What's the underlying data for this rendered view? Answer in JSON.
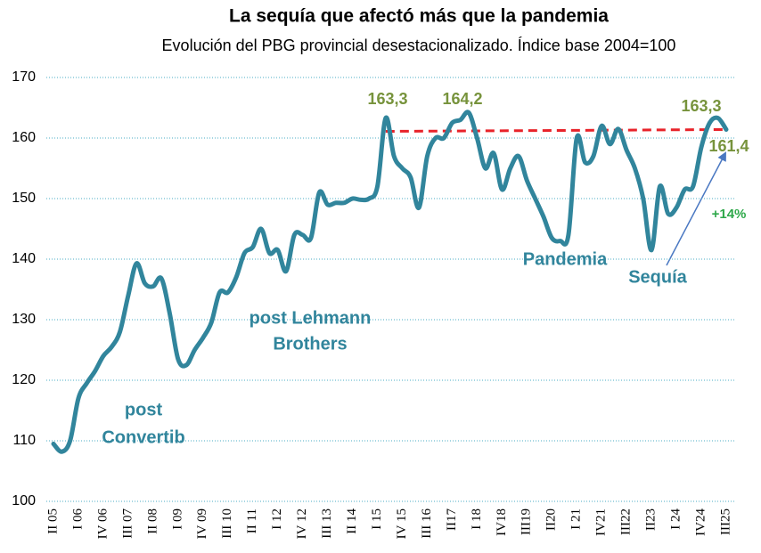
{
  "chart_data": {
    "type": "line",
    "title": "La sequía que afectó más que la pandemia",
    "subtitle": "Evolución del PBG provincial desestacionalizado. Índice base 2004=100",
    "categories": [
      "II 05",
      null,
      null,
      "I 06",
      null,
      null,
      "IV 06",
      null,
      null,
      "III 07",
      null,
      null,
      "II 08",
      null,
      null,
      "I 09",
      null,
      null,
      "IV 09",
      null,
      null,
      "III 10",
      null,
      null,
      "II 11",
      null,
      null,
      "I 12",
      null,
      null,
      "IV 12",
      null,
      null,
      "III 13",
      null,
      null,
      "II 14",
      null,
      null,
      "I 15",
      null,
      null,
      "IV 15",
      null,
      null,
      "III 16",
      null,
      null,
      "II17",
      null,
      null,
      "I 18",
      null,
      null,
      "IV18",
      null,
      null,
      "III19",
      null,
      null,
      "II20",
      null,
      null,
      "I 21",
      null,
      null,
      "IV21",
      null,
      null,
      "III22",
      null,
      null,
      "II23",
      null,
      null,
      "I 24",
      null,
      null,
      "IV24",
      null,
      null,
      "III25"
    ],
    "series": [
      {
        "name": "PBG",
        "color": "#31859c",
        "values": [
          109.5,
          108.2,
          110,
          117,
          119.5,
          121.5,
          124,
          125.5,
          128,
          134,
          139.3,
          136,
          135.5,
          136.8,
          131,
          123.5,
          122.5,
          125,
          127,
          129.5,
          134.5,
          134.5,
          137,
          141,
          142,
          145,
          141,
          141.5,
          138,
          144,
          144,
          143.5,
          151,
          149,
          149.3,
          149.3,
          150,
          149.8,
          150,
          152,
          163.3,
          157,
          155,
          153.5,
          148.5,
          157,
          160,
          160,
          162.5,
          163,
          164.2,
          160,
          155,
          157.5,
          151.5,
          155,
          157,
          153,
          150,
          147,
          143.5,
          143,
          144,
          160,
          156,
          157,
          162,
          159,
          161.5,
          158,
          155,
          150,
          141.5,
          152,
          147.5,
          148.5,
          151.5,
          152,
          158.5,
          162.5,
          163.3,
          161.4
        ]
      }
    ],
    "reference_line": {
      "color": "#e8232a",
      "values": [
        161.1,
        161.4
      ]
    },
    "ylim": [
      100,
      170
    ],
    "yticks": [
      100,
      110,
      120,
      130,
      140,
      150,
      160,
      170
    ],
    "grid": true,
    "annotations": [
      {
        "text": "163,3",
        "color": "#77933c"
      },
      {
        "text": "164,2",
        "color": "#77933c"
      },
      {
        "text": "163,3",
        "color": "#77933c"
      },
      {
        "text": "161,4",
        "color": "#77933c"
      },
      {
        "text": "+14%",
        "color": "#2ea84a"
      },
      {
        "text": "Pandemia",
        "color": "#31859c"
      },
      {
        "text": "Sequía",
        "color": "#31859c"
      },
      {
        "text": "post Lehmann",
        "color": "#31859c"
      },
      {
        "text": "Brothers",
        "color": "#31859c"
      },
      {
        "text": "post",
        "color": "#31859c"
      },
      {
        "text": "Convertib",
        "color": "#31859c"
      }
    ]
  }
}
